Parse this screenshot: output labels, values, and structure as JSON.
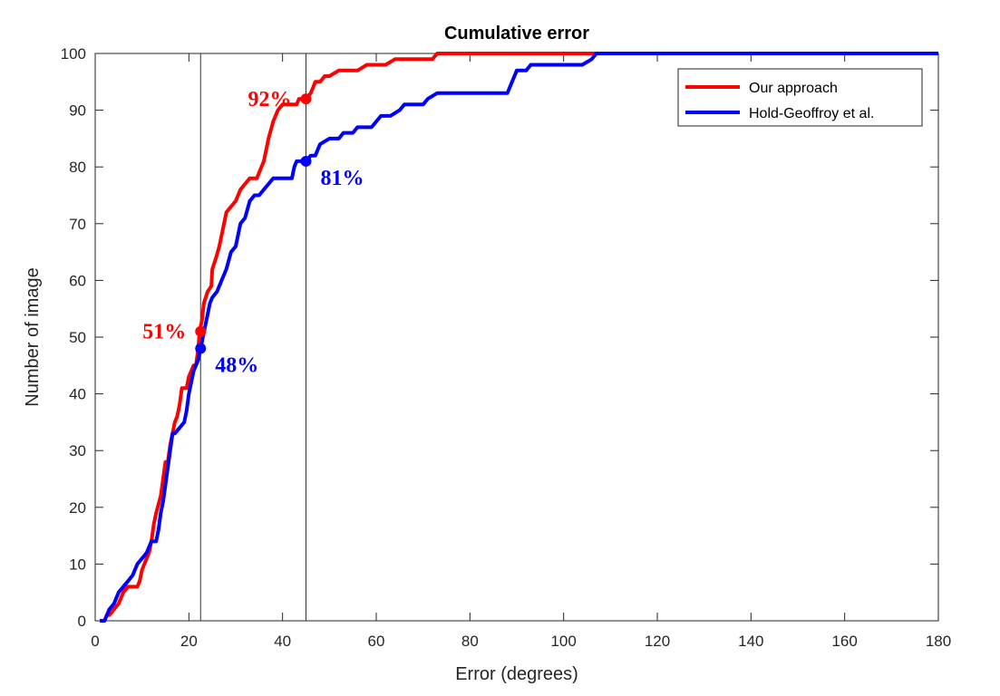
{
  "chart_data": {
    "type": "line",
    "title": "Cumulative error",
    "xlabel": "Error (degrees)",
    "ylabel": "Number of image",
    "xlim": [
      0,
      180
    ],
    "ylim": [
      0,
      100
    ],
    "xticks": [
      0,
      20,
      40,
      60,
      80,
      100,
      120,
      140,
      160,
      180
    ],
    "yticks": [
      0,
      10,
      20,
      30,
      40,
      50,
      60,
      70,
      80,
      90,
      100
    ],
    "grid": false,
    "legend_position": "top-right",
    "reference_lines_x": [
      22.5,
      45
    ],
    "series": [
      {
        "name": "Our approach",
        "color": "#ff0000",
        "points": [
          [
            1,
            0
          ],
          [
            2,
            0
          ],
          [
            2.5,
            1
          ],
          [
            3,
            1
          ],
          [
            4,
            2
          ],
          [
            5,
            3
          ],
          [
            5.5,
            4
          ],
          [
            6,
            5
          ],
          [
            7,
            6
          ],
          [
            8,
            6
          ],
          [
            9,
            6
          ],
          [
            9.5,
            7
          ],
          [
            10,
            9
          ],
          [
            11,
            11
          ],
          [
            11.5,
            12
          ],
          [
            12,
            14
          ],
          [
            12.5,
            17
          ],
          [
            13,
            19
          ],
          [
            14,
            22
          ],
          [
            14.5,
            25
          ],
          [
            15,
            28
          ],
          [
            15.5,
            28
          ],
          [
            16,
            31
          ],
          [
            16.5,
            33
          ],
          [
            17,
            35
          ],
          [
            17.5,
            36
          ],
          [
            18,
            38
          ],
          [
            18.5,
            41
          ],
          [
            19,
            41
          ],
          [
            19.5,
            41
          ],
          [
            20,
            43
          ],
          [
            21,
            45
          ],
          [
            21.5,
            45
          ],
          [
            22,
            48
          ],
          [
            22.3,
            51
          ],
          [
            22.8,
            53
          ],
          [
            23.2,
            56
          ],
          [
            24,
            58
          ],
          [
            24.8,
            59
          ],
          [
            25,
            62
          ],
          [
            25.8,
            64
          ],
          [
            26.5,
            66
          ],
          [
            27,
            68
          ],
          [
            27.5,
            70
          ],
          [
            28,
            72
          ],
          [
            29,
            73
          ],
          [
            30,
            74
          ],
          [
            30.5,
            75
          ],
          [
            31,
            76
          ],
          [
            32,
            77
          ],
          [
            33,
            78
          ],
          [
            34.5,
            78
          ],
          [
            35,
            79
          ],
          [
            36,
            81
          ],
          [
            36.5,
            83
          ],
          [
            37,
            85
          ],
          [
            38,
            88
          ],
          [
            39,
            90
          ],
          [
            40,
            91
          ],
          [
            42,
            91
          ],
          [
            43,
            91
          ],
          [
            43.5,
            92
          ],
          [
            45,
            92
          ],
          [
            46,
            93
          ],
          [
            46.5,
            94
          ],
          [
            47,
            95
          ],
          [
            48,
            95
          ],
          [
            49,
            96
          ],
          [
            50,
            96
          ],
          [
            52,
            97
          ],
          [
            54,
            97
          ],
          [
            56,
            97
          ],
          [
            58,
            98
          ],
          [
            60,
            98
          ],
          [
            62,
            98
          ],
          [
            64,
            99
          ],
          [
            70,
            99
          ],
          [
            72,
            99
          ],
          [
            73,
            100
          ],
          [
            80,
            100
          ],
          [
            180,
            100
          ]
        ]
      },
      {
        "name": "Hold-Geoffroy et al.",
        "color": "#0000ff",
        "points": [
          [
            1,
            0
          ],
          [
            2,
            0
          ],
          [
            3,
            2
          ],
          [
            4,
            3
          ],
          [
            5,
            5
          ],
          [
            6,
            6
          ],
          [
            7,
            7
          ],
          [
            8,
            8
          ],
          [
            9,
            10
          ],
          [
            10,
            11
          ],
          [
            11,
            12
          ],
          [
            12,
            14
          ],
          [
            13,
            14
          ],
          [
            13.5,
            16
          ],
          [
            14,
            19
          ],
          [
            14.5,
            21
          ],
          [
            15,
            24
          ],
          [
            15.5,
            27
          ],
          [
            16,
            30
          ],
          [
            16.5,
            33
          ],
          [
            17,
            33
          ],
          [
            18,
            34
          ],
          [
            19,
            35
          ],
          [
            19.5,
            37
          ],
          [
            20,
            40
          ],
          [
            20.5,
            42
          ],
          [
            21,
            44
          ],
          [
            22,
            46
          ],
          [
            22.5,
            48
          ],
          [
            23,
            50
          ],
          [
            23.5,
            52
          ],
          [
            24,
            54
          ],
          [
            24.5,
            56
          ],
          [
            25,
            57
          ],
          [
            26,
            58
          ],
          [
            27,
            60
          ],
          [
            28,
            62
          ],
          [
            29,
            65
          ],
          [
            30,
            66
          ],
          [
            31,
            70
          ],
          [
            32,
            71
          ],
          [
            33,
            74
          ],
          [
            34,
            75
          ],
          [
            35,
            75
          ],
          [
            36,
            76
          ],
          [
            37,
            77
          ],
          [
            38,
            78
          ],
          [
            39,
            78
          ],
          [
            40,
            78
          ],
          [
            42,
            78
          ],
          [
            42.5,
            80
          ],
          [
            43,
            81
          ],
          [
            45,
            81
          ],
          [
            46,
            82
          ],
          [
            47,
            82
          ],
          [
            48,
            84
          ],
          [
            50,
            85
          ],
          [
            52,
            85
          ],
          [
            53,
            86
          ],
          [
            55,
            86
          ],
          [
            56,
            87
          ],
          [
            59,
            87
          ],
          [
            60,
            88
          ],
          [
            61,
            89
          ],
          [
            63,
            89
          ],
          [
            65,
            90
          ],
          [
            66,
            91
          ],
          [
            70,
            91
          ],
          [
            71,
            92
          ],
          [
            73,
            93
          ],
          [
            80,
            93
          ],
          [
            88,
            93
          ],
          [
            89,
            95
          ],
          [
            90,
            97
          ],
          [
            92,
            97
          ],
          [
            93,
            98
          ],
          [
            100,
            98
          ],
          [
            104,
            98
          ],
          [
            106,
            99
          ],
          [
            107,
            100
          ],
          [
            112,
            100
          ],
          [
            180,
            100
          ]
        ]
      }
    ],
    "annotations": [
      {
        "text": "51%",
        "color": "#ff0000",
        "x": 22.5,
        "y": 51,
        "side": "left"
      },
      {
        "text": "48%",
        "color": "#0000ff",
        "x": 22.5,
        "y": 48,
        "side": "right"
      },
      {
        "text": "92%",
        "color": "#ff0000",
        "x": 45,
        "y": 92,
        "side": "left"
      },
      {
        "text": "81%",
        "color": "#0000ff",
        "x": 45,
        "y": 81,
        "side": "right"
      }
    ]
  }
}
